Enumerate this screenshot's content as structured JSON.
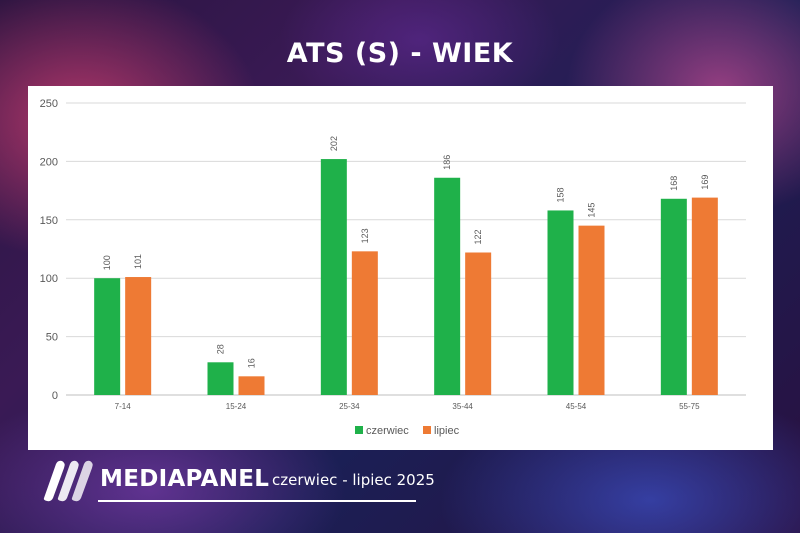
{
  "header": {
    "title": "ATS (S) - WIEK"
  },
  "footer": {
    "brand": "MEDIAPANEL",
    "period": "czerwiec - lipiec 2025"
  },
  "colors": {
    "czerwiec": "#1fb14a",
    "lipiec": "#ee7a34",
    "grid": "#d9d9d9",
    "axis_text": "#595959"
  },
  "chart_data": {
    "type": "bar",
    "title": "",
    "xlabel": "",
    "ylabel": "",
    "categories": [
      "7-14",
      "15-24",
      "25-34",
      "35-44",
      "45-54",
      "55-75"
    ],
    "series": [
      {
        "name": "czerwiec",
        "values": [
          100,
          28,
          202,
          186,
          158,
          168
        ]
      },
      {
        "name": "lipiec",
        "values": [
          101,
          16,
          123,
          122,
          145,
          169
        ]
      }
    ],
    "ylim": [
      0,
      250
    ],
    "yticks": [
      0,
      50,
      100,
      150,
      200,
      250
    ],
    "grid": true,
    "legend": "bottom-center",
    "data_labels": true
  }
}
